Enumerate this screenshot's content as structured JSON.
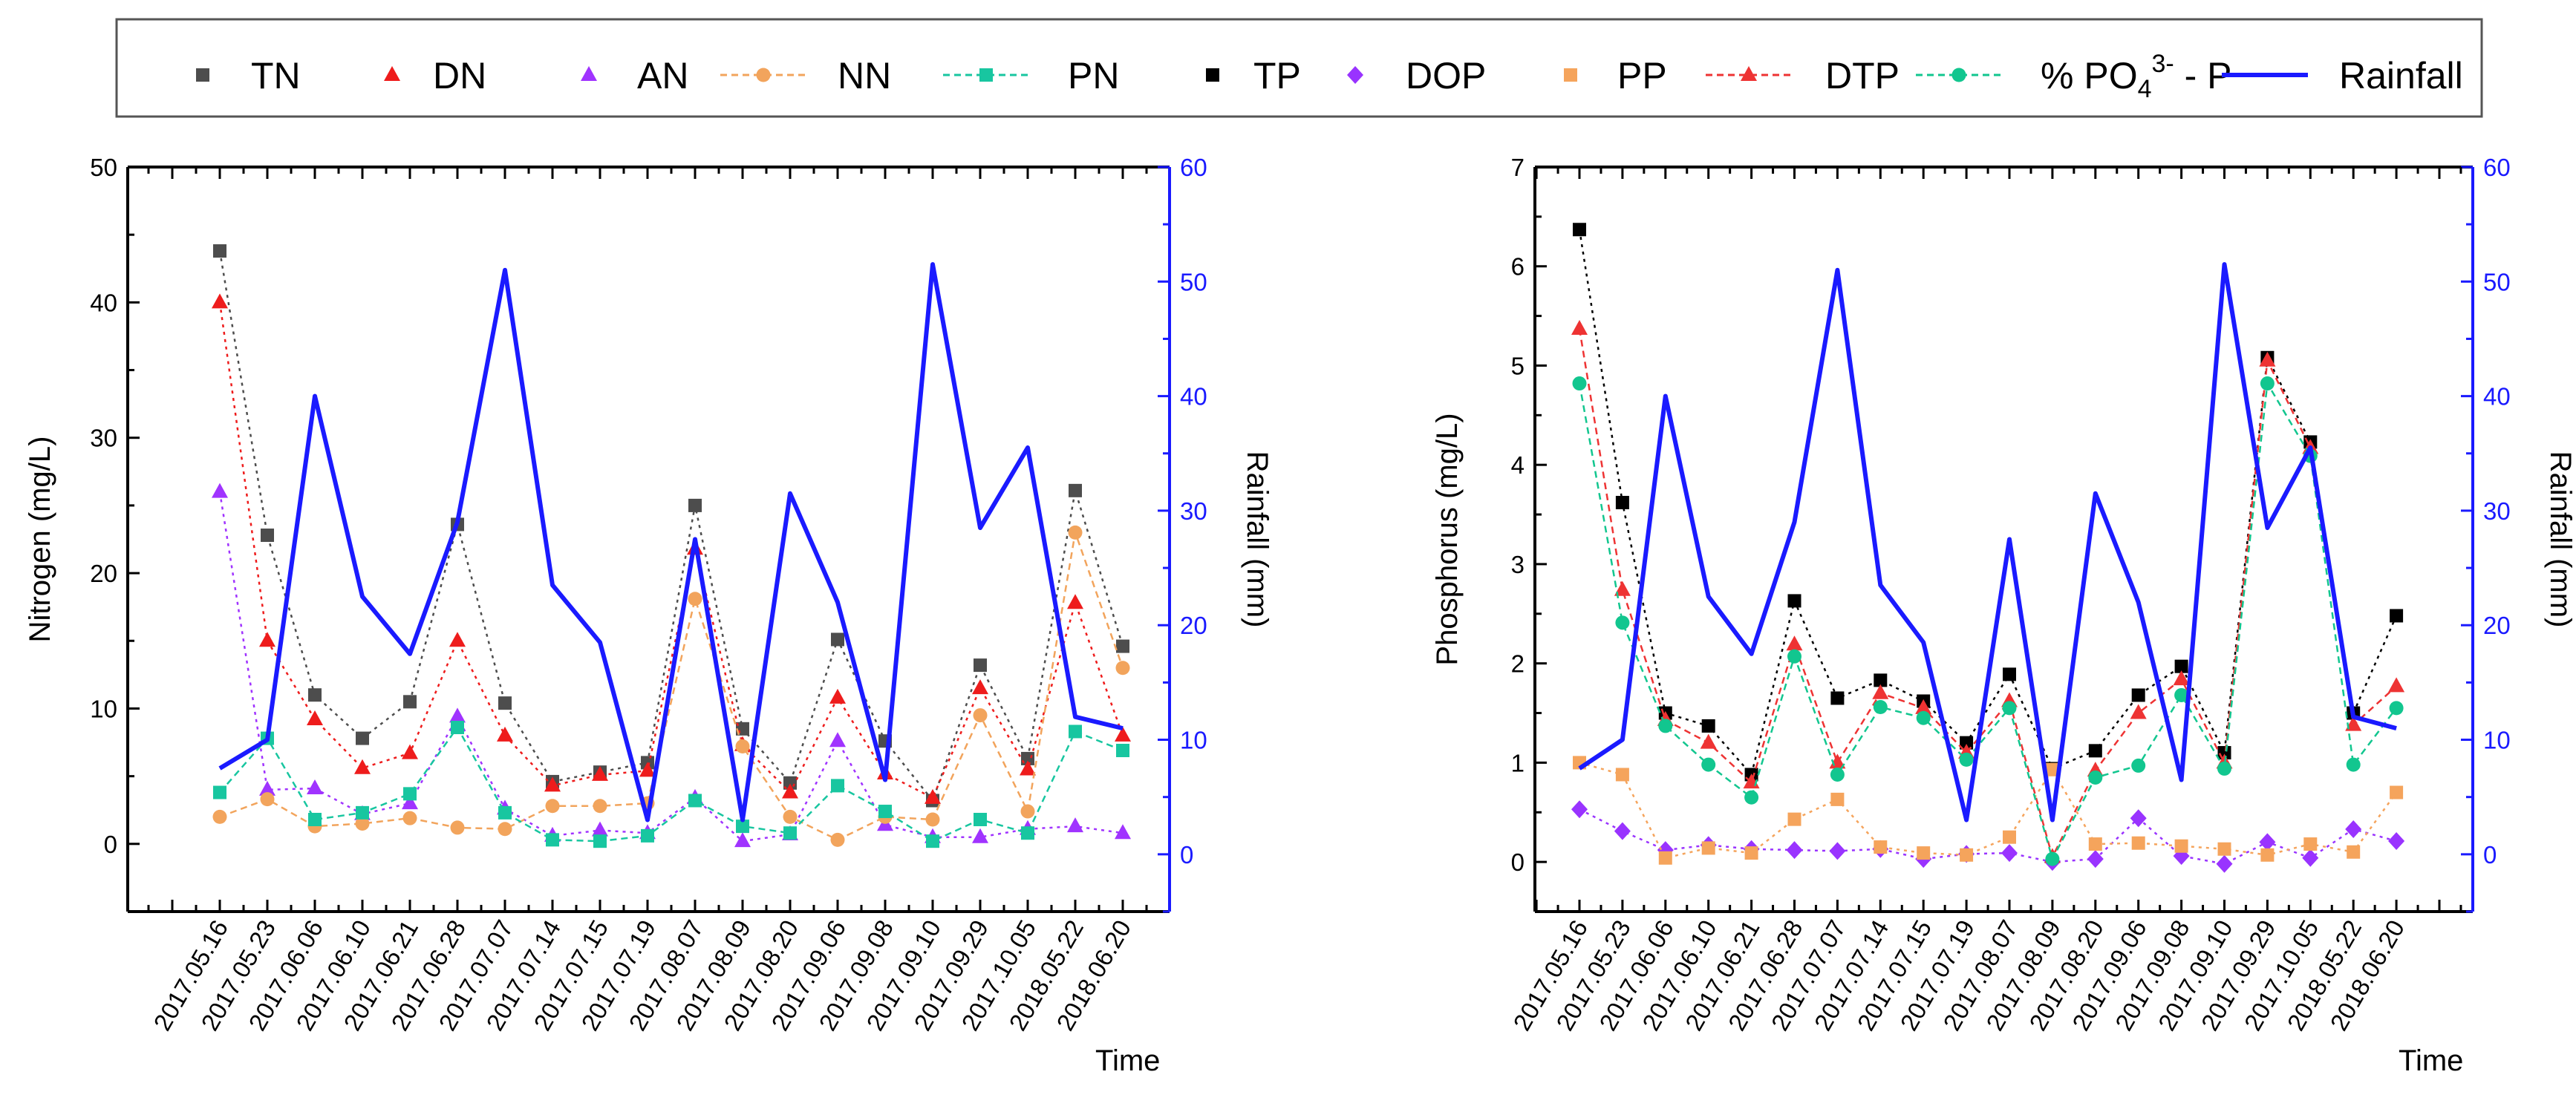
{
  "legend": [
    {
      "label": "TN",
      "key": "TN"
    },
    {
      "label": "DN",
      "key": "DN"
    },
    {
      "label": "AN",
      "key": "AN"
    },
    {
      "label": "NN",
      "key": "NN"
    },
    {
      "label": "PN",
      "key": "PN"
    },
    {
      "label": "TP",
      "key": "TP"
    },
    {
      "label": "DOP",
      "key": "DOP"
    },
    {
      "label": "PP",
      "key": "PP"
    },
    {
      "label": "DTP",
      "key": "DTP"
    },
    {
      "label": "% PO",
      "key": "PO4",
      "sub": "4",
      "sup": "3-",
      "tail": " - P"
    },
    {
      "label": "Rainfall",
      "key": "Rainfall"
    }
  ],
  "styles": {
    "TN": {
      "color": "#4d4d4d",
      "marker": "square",
      "line": false
    },
    "DN": {
      "color": "#ee1c1c",
      "marker": "triangle",
      "line": false
    },
    "AN": {
      "color": "#a033ff",
      "marker": "triangle",
      "line": false
    },
    "NN": {
      "color": "#f2a45c",
      "marker": "circle",
      "line": true,
      "dash": true
    },
    "PN": {
      "color": "#18c6a0",
      "marker": "square",
      "line": true,
      "dash": true
    },
    "TP": {
      "color": "#000000",
      "marker": "square",
      "line": false
    },
    "DOP": {
      "color": "#9933ff",
      "marker": "diamond",
      "line": false
    },
    "PP": {
      "color": "#f5a45c",
      "marker": "square",
      "line": false
    },
    "DTP": {
      "color": "#ee3333",
      "marker": "triangle",
      "line": true,
      "dash": true
    },
    "PO4": {
      "color": "#12c68f",
      "marker": "circle",
      "line": true,
      "dash": true
    },
    "Rainfall": {
      "color": "#1a1aff",
      "marker": "none",
      "line": true,
      "dash": false
    }
  },
  "chart_data": [
    {
      "type": "line",
      "title": "",
      "xlabel": "Time",
      "ylabel": "Nitrogen (mg/L)",
      "y2label": "Rainfall (mm)",
      "ylim": [
        -5,
        50
      ],
      "y2lim": [
        -5,
        60
      ],
      "yticks": [
        0,
        10,
        20,
        30,
        40,
        50
      ],
      "y2ticks": [
        0,
        10,
        20,
        30,
        40,
        50,
        60
      ],
      "categories": [
        "2017.05.16",
        "2017.05.23",
        "2017.06.06",
        "2017.06.10",
        "2017.06.21",
        "2017.06.28",
        "2017.07.07",
        "2017.07.14",
        "2017.07.15",
        "2017.07.19",
        "2017.08.07",
        "2017.08.09",
        "2017.08.20",
        "2017.09.06",
        "2017.09.08",
        "2017.09.10",
        "2017.09.29",
        "2017.10.05",
        "2018.05.22",
        "2018.06.20"
      ],
      "series": [
        {
          "name": "TN",
          "values": [
            43.8,
            22.8,
            11.0,
            7.8,
            10.5,
            23.6,
            10.4,
            4.6,
            5.3,
            6.0,
            25.0,
            8.5,
            4.5,
            15.1,
            7.6,
            3.2,
            13.2,
            6.3,
            26.1,
            14.6
          ]
        },
        {
          "name": "DN",
          "values": [
            40.0,
            15.0,
            9.2,
            5.6,
            6.7,
            15.0,
            8.0,
            4.3,
            5.1,
            5.4,
            21.8,
            7.3,
            3.8,
            10.8,
            5.2,
            3.4,
            11.5,
            5.5,
            17.8,
            8.0
          ]
        },
        {
          "name": "AN",
          "values": [
            26.0,
            4.0,
            4.1,
            2.2,
            3.0,
            9.4,
            2.6,
            0.6,
            1.0,
            0.8,
            3.4,
            0.2,
            0.7,
            7.6,
            1.4,
            0.5,
            0.5,
            1.1,
            1.3,
            0.8
          ]
        },
        {
          "name": "NN",
          "values": [
            2.0,
            3.3,
            1.3,
            1.5,
            1.9,
            1.2,
            1.1,
            2.8,
            2.8,
            3.0,
            18.1,
            7.2,
            2.0,
            0.3,
            2.0,
            1.8,
            9.5,
            2.4,
            23.0,
            13.0
          ]
        },
        {
          "name": "PN",
          "values": [
            3.8,
            7.8,
            1.8,
            2.3,
            3.7,
            8.6,
            2.3,
            0.3,
            0.2,
            0.6,
            3.2,
            1.3,
            0.8,
            4.3,
            2.4,
            0.2,
            1.8,
            0.8,
            8.3,
            6.9
          ]
        },
        {
          "name": "Rainfall",
          "axis": "right",
          "values": [
            7.5,
            10.0,
            40.0,
            22.5,
            17.5,
            29.0,
            51.0,
            23.5,
            18.5,
            3.0,
            27.5,
            3.0,
            31.5,
            22.0,
            6.5,
            51.5,
            28.5,
            35.5,
            12.0,
            11.0
          ]
        }
      ]
    },
    {
      "type": "line",
      "title": "",
      "xlabel": "Time",
      "ylabel": "Phosphorus (mg/L)",
      "y2label": "Rainfall (mm)",
      "ylim": [
        -0.5,
        7
      ],
      "y2lim": [
        -5,
        60
      ],
      "yticks": [
        0,
        1,
        2,
        3,
        4,
        5,
        6,
        7
      ],
      "y2ticks": [
        0,
        10,
        20,
        30,
        40,
        50,
        60
      ],
      "categories": [
        "2017.05.16",
        "2017.05.23",
        "2017.06.06",
        "2017.06.10",
        "2017.06.21",
        "2017.06.28",
        "2017.07.07",
        "2017.07.14",
        "2017.07.15",
        "2017.07.19",
        "2017.08.07",
        "2017.08.09",
        "2017.08.20",
        "2017.09.06",
        "2017.09.08",
        "2017.09.10",
        "2017.09.29",
        "2017.10.05",
        "2018.05.22",
        "2018.06.20"
      ],
      "series": [
        {
          "name": "TP",
          "values": [
            6.37,
            3.62,
            1.5,
            1.37,
            0.88,
            2.63,
            1.65,
            1.83,
            1.62,
            1.2,
            1.89,
            0.94,
            1.12,
            1.68,
            1.97,
            1.1,
            5.08,
            4.23,
            1.5,
            2.48
          ]
        },
        {
          "name": "DOP",
          "values": [
            0.53,
            0.31,
            0.12,
            0.17,
            0.13,
            0.12,
            0.11,
            0.13,
            0.03,
            0.08,
            0.09,
            0.0,
            0.03,
            0.44,
            0.06,
            -0.02,
            0.2,
            0.04,
            0.33,
            0.21
          ]
        },
        {
          "name": "PP",
          "values": [
            1.0,
            0.88,
            0.04,
            0.14,
            0.09,
            0.43,
            0.63,
            0.15,
            0.09,
            0.07,
            0.25,
            0.93,
            0.18,
            0.19,
            0.16,
            0.13,
            0.07,
            0.18,
            0.1,
            0.7
          ]
        },
        {
          "name": "DTP",
          "values": [
            5.37,
            2.74,
            1.43,
            1.2,
            0.8,
            2.19,
            1.0,
            1.7,
            1.55,
            1.1,
            1.62,
            0.05,
            0.92,
            1.5,
            1.84,
            1.0,
            5.05,
            4.17,
            1.38,
            1.77
          ]
        },
        {
          "name": "% PO4 3- - P",
          "values": [
            4.82,
            2.41,
            1.37,
            0.98,
            0.65,
            2.07,
            0.88,
            1.56,
            1.45,
            1.03,
            1.55,
            0.03,
            0.85,
            0.97,
            1.68,
            0.94,
            4.82,
            4.09,
            0.98,
            1.55
          ]
        },
        {
          "name": "Rainfall",
          "axis": "right",
          "values": [
            7.5,
            10.0,
            40.0,
            22.5,
            17.5,
            29.0,
            51.0,
            23.5,
            18.5,
            3.0,
            27.5,
            3.0,
            31.5,
            22.0,
            6.5,
            51.5,
            28.5,
            35.5,
            12.0,
            11.0
          ]
        }
      ]
    }
  ]
}
